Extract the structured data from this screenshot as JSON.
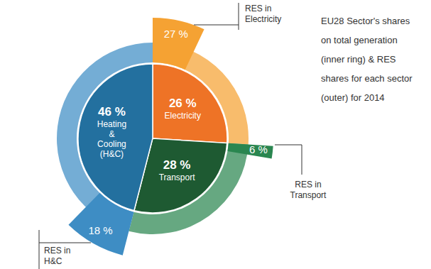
{
  "chart_data": {
    "type": "pie",
    "title": "EU28 Sector's shares on total generation (inner ring) & RES shares for each sector (outer) for 2014",
    "categories": [
      "Electricity",
      "Transport",
      "Heating & Cooling (H&C)"
    ],
    "series": [
      {
        "values": [
          26,
          28,
          46
        ],
        "value_labels": [
          "26 %",
          "28 %",
          "46 %"
        ],
        "colors": [
          "#ee7326",
          "#1e5a32",
          "#23709f"
        ]
      },
      {
        "labels": [
          "RES in Electricity",
          "RES in Transport",
          "RES in H&C"
        ],
        "values": [
          27,
          6,
          18
        ],
        "value_labels": [
          "27 %",
          "6 %",
          "18 %"
        ],
        "colors": [
          "#f5a233",
          "#2a8650",
          "#3e8dc4"
        ]
      }
    ],
    "data_labels": true
  }
}
